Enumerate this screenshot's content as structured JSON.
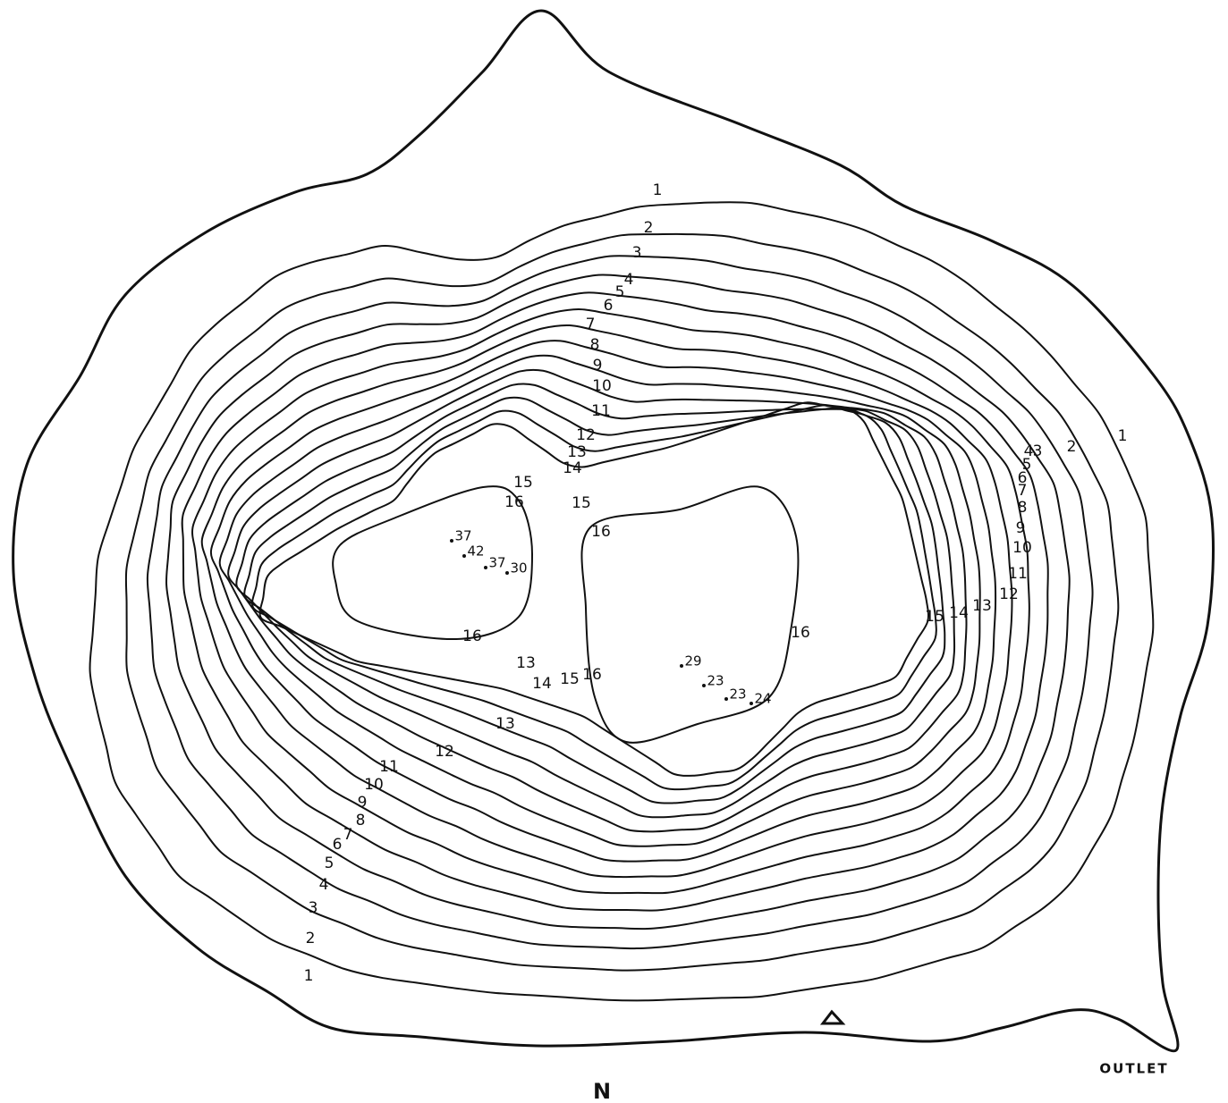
{
  "map": {
    "contour_labels": [
      "1",
      "2",
      "3",
      "4",
      "5",
      "6",
      "7",
      "8",
      "9",
      "10",
      "11",
      "12",
      "13",
      "14",
      "15",
      "16",
      "1",
      "2",
      "4",
      "3",
      "5",
      "6",
      "7",
      "8",
      "9",
      "10",
      "11",
      "12",
      "13",
      "14",
      "15",
      "15",
      "16",
      "16",
      "13",
      "14",
      "15",
      "16",
      "16",
      "13",
      "12",
      "11",
      "10",
      "9",
      "8",
      "7",
      "6",
      "5",
      "4",
      "3",
      "2",
      "1"
    ],
    "soundings": [
      37,
      42,
      37,
      30,
      29,
      23,
      23,
      24
    ],
    "outlet": "OUTLET",
    "north": "N"
  }
}
